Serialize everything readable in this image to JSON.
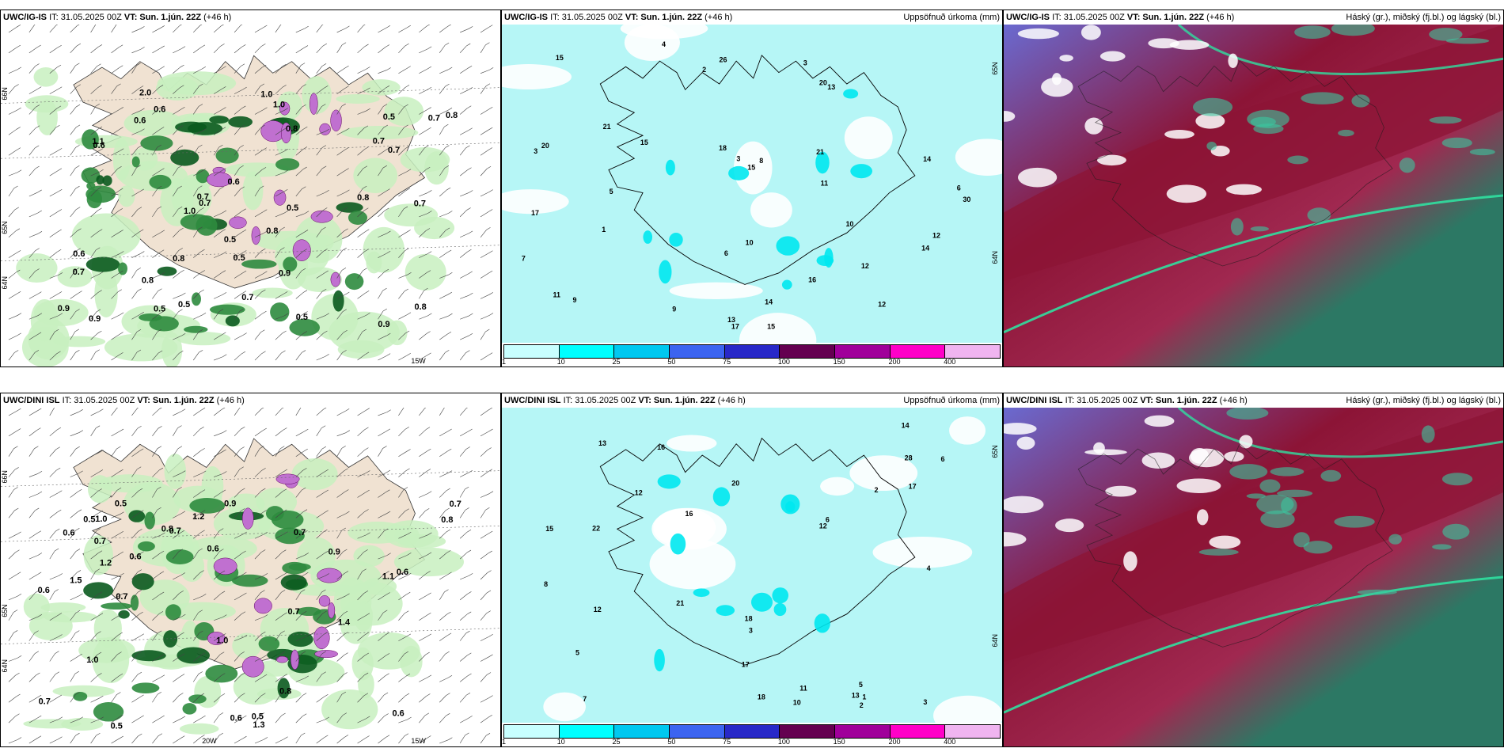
{
  "rows": [
    {
      "id": "ig-is",
      "windPanel": {
        "title_bold": "UWC/IG-IS",
        "title_rest": "IT: 31.05.2025 00Z",
        "vt_bold": "VT: Sun. 1.jún. 22Z",
        "lead": "(+46 h)",
        "lat_labels": [
          "66N",
          "64N",
          "65N"
        ],
        "lon_labels": [
          "15W"
        ],
        "values": [
          "0.6",
          "0.7",
          "0.7",
          "0.9",
          "0.7",
          "0.6",
          "0.5",
          "0.5",
          "0.8",
          "0.7",
          "0.7",
          "0.6",
          "1.1",
          "0.8",
          "0.5",
          "1.0",
          "0.9",
          "0.7",
          "1.0",
          "0.5",
          "0.6",
          "0.7",
          "0.8",
          "0.6",
          "0.5",
          "0.8",
          "0.8",
          "0.9",
          "1.0",
          "0.5",
          "0.8",
          "0.5",
          "0.7",
          "2.0",
          "0.9",
          "0.8"
        ]
      },
      "precipPanel": {
        "title_bold": "UWC/IG-IS",
        "title_rest": "IT: 31.05.2025 00Z",
        "vt_bold": "VT: Sun. 1.jún. 22Z",
        "lead": "(+46 h)",
        "right_title": "Uppsöfnuð úrkoma (mm)",
        "lat_labels": [
          "65N",
          "64N"
        ],
        "values": [
          "3",
          "2",
          "3",
          "7",
          "6",
          "9",
          "10",
          "15",
          "11",
          "15",
          "21",
          "17",
          "18",
          "14",
          "8",
          "9",
          "11",
          "12",
          "13",
          "14",
          "10",
          "12",
          "15",
          "16",
          "26",
          "30",
          "21",
          "12",
          "15",
          "14",
          "20",
          "17",
          "20",
          "13",
          "5",
          "4",
          "6",
          "3",
          "1"
        ]
      },
      "cloudPanel": {
        "title_bold": "UWC/IG-IS",
        "title_rest": "IT: 31.05.2025 00Z",
        "vt_bold": "VT: Sun. 1.jún. 22Z",
        "lead": "(+46 h)",
        "right_title": "Háský (gr.), miðský (fj.bl.) og lágský (bl.)"
      }
    },
    {
      "id": "dini-isl",
      "windPanel": {
        "title_bold": "UWC/DINI ISL",
        "title_rest": "IT: 31.05.2025 00Z",
        "vt_bold": "VT: Sun. 1.jún. 22Z",
        "lead": "(+46 h)",
        "lat_labels": [
          "66N",
          "64N",
          "65N"
        ],
        "lon_labels": [
          "20W",
          "15W"
        ],
        "values": [
          "1.3",
          "0.6",
          "0.7",
          "0.5",
          "1.4",
          "0.6",
          "0.7",
          "0.5",
          "1.0",
          "1.0",
          "0.7",
          "0.8",
          "0.9",
          "1.5",
          "0.7",
          "0.6",
          "0.5",
          "0.7",
          "0.9",
          "0.6",
          "1.1",
          "0.8",
          "1.2",
          "0.7",
          "0.6",
          "0.5",
          "1.0",
          "1.2",
          "0.6",
          "0.7",
          "0.6",
          "0.8"
        ]
      },
      "precipPanel": {
        "title_bold": "UWC/DINI ISL",
        "title_rest": "IT: 31.05.2025 00Z",
        "vt_bold": "VT: Sun. 1.jún. 22Z",
        "lead": "(+46 h)",
        "right_title": "Uppsöfnuð úrkoma (mm)",
        "lat_labels": [
          "65N",
          "64N"
        ],
        "values": [
          "7",
          "5",
          "2",
          "3",
          "4",
          "6",
          "13",
          "16",
          "14",
          "21",
          "18",
          "17",
          "13",
          "11",
          "16",
          "12",
          "15",
          "18",
          "20",
          "22",
          "28",
          "17",
          "12",
          "10",
          "8",
          "6",
          "5",
          "3",
          "2",
          "1",
          "12"
        ]
      },
      "cloudPanel": {
        "title_bold": "UWC/DINI ISL",
        "title_rest": "IT: 31.05.2025 00Z",
        "vt_bold": "VT: Sun. 1.jún. 22Z",
        "lead": "(+46 h)",
        "right_title": "Háský (gr.), miðský (fj.bl.) og lágský (bl.)"
      }
    }
  ],
  "colorbar": {
    "ticks": [
      "1",
      "10",
      "25",
      "50",
      "75",
      "100",
      "150",
      "200",
      "400"
    ],
    "colors": [
      "#c8ffff",
      "#00ffff",
      "#00c8f0",
      "#3c64f0",
      "#2828c8",
      "#640050",
      "#a0009a",
      "#ff00c8",
      "#f0b4f0"
    ]
  },
  "colors": {
    "land": "#f0e2d2",
    "sea_precip": "#b6f6f6",
    "green_light": "#c8f0c0",
    "green_dark": "#0a5a1e",
    "magenta": "#c070d0",
    "cloud_blue": "#6a6ad0",
    "cloud_red": "#8c1436",
    "cloud_green": "#2c7864"
  }
}
